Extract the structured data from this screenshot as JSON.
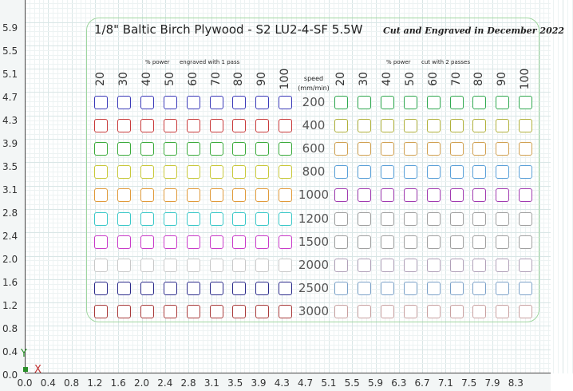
{
  "y_axis_labels": [
    "5.9",
    "5.5",
    "5.1",
    "4.7",
    "4.3",
    "3.9",
    "3.5",
    "3.1",
    "2.8",
    "2.4",
    "2.0",
    "1.6",
    "1.2",
    "0.8",
    "0.4",
    "0.0"
  ],
  "x_axis_labels": [
    "0.0",
    "0.4",
    "0.8",
    "1.2",
    "1.6",
    "2.0",
    "2.4",
    "2.8",
    "3.1",
    "3.5",
    "3.9",
    "4.3",
    "4.7",
    "5.1",
    "5.5",
    "5.9",
    "6.3",
    "6.7",
    "7.1",
    "7.5",
    "7.9",
    "8.3"
  ],
  "axis_letters": {
    "y": "Y",
    "x": "X"
  },
  "board": {
    "title": "1/8\" Baltic Birch Plywood - S2 LU2-4-SF 5.5W",
    "signature": "Cut and Engraved in December 2022",
    "left_power_label": "% power",
    "left_pass_label": "engraved with 1 pass",
    "right_power_label": "% power",
    "right_pass_label": "cut with 2 passes",
    "speed_header": "speed",
    "speed_unit": "(mm/min)",
    "power_columns": [
      "20",
      "30",
      "40",
      "50",
      "60",
      "70",
      "80",
      "90",
      "100"
    ],
    "speeds": [
      "200",
      "400",
      "600",
      "800",
      "1000",
      "1200",
      "1500",
      "2000",
      "2500",
      "3000"
    ],
    "left_row_colors": [
      "#3a3ab8",
      "#c83a3a",
      "#3aaa3a",
      "#c8c83a",
      "#e09a3a",
      "#3ac8c8",
      "#c83ac8",
      "#c8c8c8",
      "#2a2a8a",
      "#a83a3a"
    ],
    "right_row_colors": [
      "#2fa84f",
      "#b0b03a",
      "#d0a050",
      "#5aa0d8",
      "#a03ab0",
      "#a0a0a0",
      "#a0a0a0",
      "#b0a0b8",
      "#7aa0c8",
      "#c8a0a0"
    ]
  }
}
